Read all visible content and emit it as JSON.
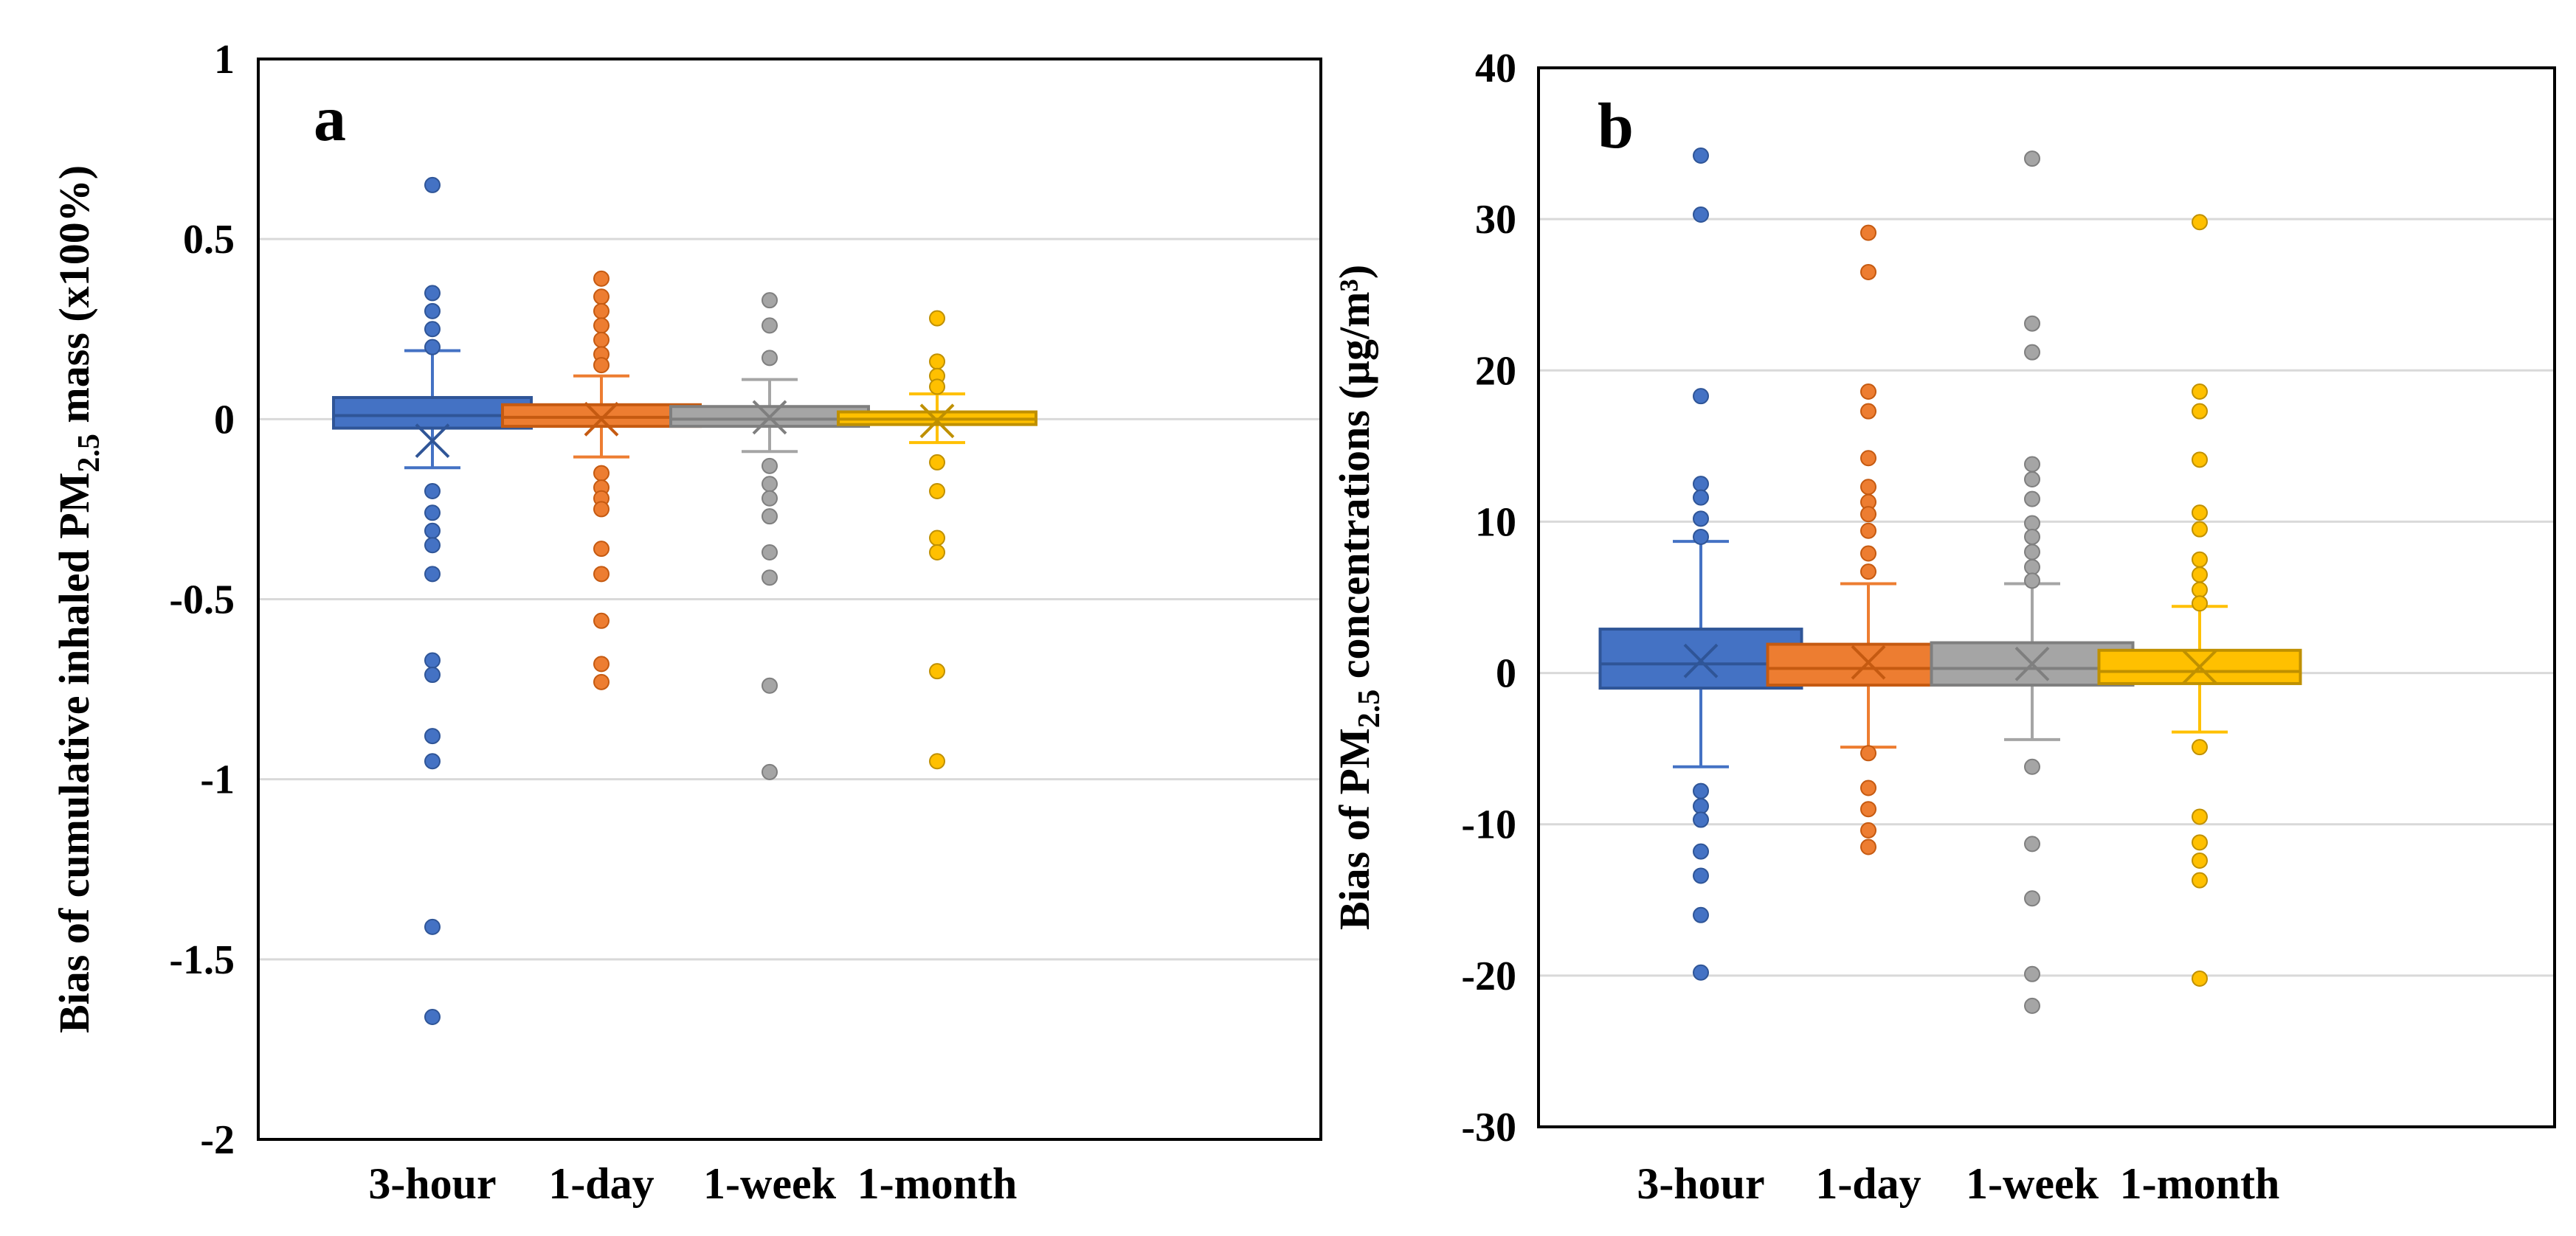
{
  "chart_data": [
    {
      "type": "box",
      "panel_label": "a",
      "ylabel": {
        "prefix": "Bias of cumulative inhaled PM",
        "sub": "2.5",
        "suffix": " mass (x100%)"
      },
      "xlabel": "",
      "ylim": [
        -2,
        1
      ],
      "yticks": [
        -2,
        -1.5,
        -1,
        -0.5,
        0,
        0.5,
        1
      ],
      "ytick_labels": [
        "-2",
        "-1.5",
        "-1",
        "-0.5",
        "0",
        "0.5",
        "1"
      ],
      "grid": true,
      "categories": [
        "3-hour",
        "1-day",
        "1-week",
        "1-month"
      ],
      "colors": [
        "#4472C4",
        "#ED7D31",
        "#A5A5A5",
        "#FFC000"
      ],
      "edge_colors": [
        "#2F5597",
        "#C55A11",
        "#7F7F7F",
        "#BF9000"
      ],
      "boxes": [
        {
          "category": "3-hour",
          "q1": -0.025,
          "median": 0.01,
          "q3": 0.06,
          "mean": -0.06,
          "whisker_low": -0.135,
          "whisker_high": 0.19,
          "outliers": [
            0.65,
            0.35,
            0.3,
            0.25,
            0.2,
            -0.2,
            -0.26,
            -0.31,
            -0.35,
            -0.43,
            -0.67,
            -0.71,
            -0.88,
            -0.95,
            -1.41,
            -1.66
          ]
        },
        {
          "category": "1-day",
          "q1": -0.02,
          "median": 0.005,
          "q3": 0.04,
          "mean": 0.0,
          "whisker_low": -0.105,
          "whisker_high": 0.12,
          "outliers": [
            0.39,
            0.34,
            0.3,
            0.26,
            0.22,
            0.18,
            0.15,
            -0.15,
            -0.19,
            -0.22,
            -0.25,
            -0.36,
            -0.43,
            -0.56,
            -0.68,
            -0.73
          ]
        },
        {
          "category": "1-week",
          "q1": -0.02,
          "median": 0.0,
          "q3": 0.035,
          "mean": 0.005,
          "whisker_low": -0.09,
          "whisker_high": 0.11,
          "outliers": [
            0.33,
            0.26,
            0.17,
            -0.13,
            -0.18,
            -0.22,
            -0.27,
            -0.37,
            -0.44,
            -0.74,
            -0.98
          ]
        },
        {
          "category": "1-month",
          "q1": -0.015,
          "median": 0.0,
          "q3": 0.02,
          "mean": -0.005,
          "whisker_low": -0.065,
          "whisker_high": 0.07,
          "outliers": [
            0.28,
            0.16,
            0.12,
            0.09,
            -0.12,
            -0.2,
            -0.33,
            -0.37,
            -0.7,
            -0.95
          ]
        }
      ]
    },
    {
      "type": "box",
      "panel_label": "b",
      "ylabel": {
        "prefix": "Bias of PM",
        "sub": "2.5",
        "suffix": " concentrations (µg/m³)"
      },
      "xlabel": "",
      "ylim": [
        -30,
        40
      ],
      "yticks": [
        -30,
        -20,
        -10,
        0,
        10,
        20,
        30,
        40
      ],
      "ytick_labels": [
        "-30",
        "-20",
        "-10",
        "0",
        "10",
        "20",
        "30",
        "40"
      ],
      "grid": true,
      "categories": [
        "3-hour",
        "1-day",
        "1-week",
        "1-month"
      ],
      "colors": [
        "#4472C4",
        "#ED7D31",
        "#A5A5A5",
        "#FFC000"
      ],
      "edge_colors": [
        "#2F5597",
        "#C55A11",
        "#7F7F7F",
        "#BF9000"
      ],
      "boxes": [
        {
          "category": "3-hour",
          "q1": -1.0,
          "median": 0.6,
          "q3": 2.9,
          "mean": 0.8,
          "whisker_low": -6.2,
          "whisker_high": 8.7,
          "outliers": [
            34.2,
            30.3,
            18.3,
            12.5,
            11.6,
            10.2,
            9.0,
            -7.8,
            -8.8,
            -9.7,
            -11.8,
            -13.4,
            -16.0,
            -19.8
          ]
        },
        {
          "category": "1-day",
          "q1": -0.8,
          "median": 0.3,
          "q3": 1.9,
          "mean": 0.7,
          "whisker_low": -4.9,
          "whisker_high": 5.9,
          "outliers": [
            29.1,
            26.5,
            18.6,
            17.3,
            14.2,
            12.3,
            11.3,
            10.5,
            9.4,
            7.9,
            6.7,
            -5.3,
            -7.6,
            -9.0,
            -10.4,
            -11.5
          ]
        },
        {
          "category": "1-week",
          "q1": -0.8,
          "median": 0.3,
          "q3": 2.0,
          "mean": 0.6,
          "whisker_low": -4.4,
          "whisker_high": 5.9,
          "outliers": [
            34.0,
            23.1,
            21.2,
            13.8,
            12.8,
            11.5,
            9.9,
            9.0,
            8.0,
            7.0,
            6.1,
            -6.2,
            -11.3,
            -14.9,
            -19.9,
            -22.0
          ]
        },
        {
          "category": "1-month",
          "q1": -0.7,
          "median": 0.1,
          "q3": 1.5,
          "mean": 0.4,
          "whisker_low": -3.9,
          "whisker_high": 4.4,
          "outliers": [
            29.8,
            18.6,
            17.3,
            14.1,
            10.6,
            9.5,
            7.5,
            6.5,
            5.5,
            4.6,
            -4.9,
            -9.5,
            -11.2,
            -12.4,
            -13.7,
            -20.2
          ]
        }
      ]
    }
  ]
}
